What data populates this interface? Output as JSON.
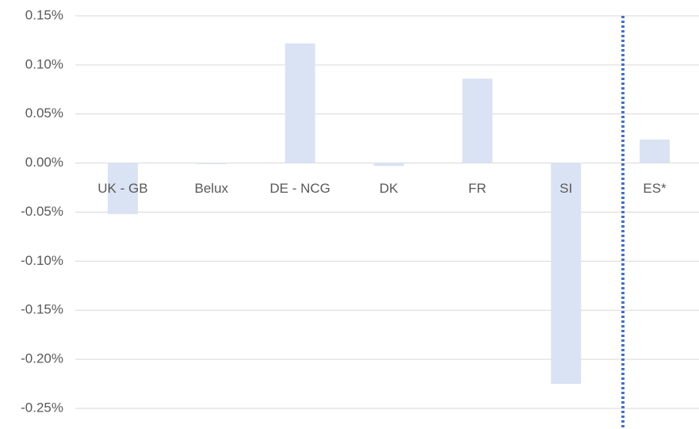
{
  "chart_data": {
    "type": "bar",
    "categories": [
      "UK - GB",
      "Belux",
      "DE - NCG",
      "DK",
      "FR",
      "SI",
      "ES*"
    ],
    "values": [
      -0.052,
      -0.001,
      0.122,
      -0.003,
      0.086,
      -0.225,
      0.024
    ],
    "color": "#dae3f3",
    "ylim": [
      -0.25,
      0.15
    ],
    "yticks": [
      {
        "value": -0.25,
        "label": "-0.25%"
      },
      {
        "value": -0.2,
        "label": "-0.20%"
      },
      {
        "value": -0.15,
        "label": "-0.15%"
      },
      {
        "value": -0.1,
        "label": "-0.10%"
      },
      {
        "value": -0.05,
        "label": "-0.05%"
      },
      {
        "value": 0,
        "label": "0.00%"
      },
      {
        "value": 0.05,
        "label": "0.05%"
      },
      {
        "value": 0.1,
        "label": "0.10%"
      },
      {
        "value": 0.15,
        "label": "0.15%"
      }
    ],
    "grid": true
  }
}
